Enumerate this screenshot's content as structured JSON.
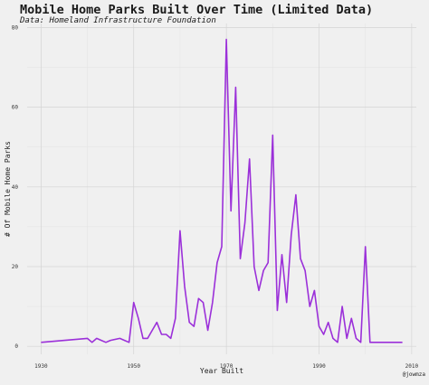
{
  "chart_data": {
    "type": "line",
    "title": "Mobile Home Parks Built Over Time (Limited Data)",
    "subtitle": "Data: Homeland Infrastructure Foundation",
    "xlabel": "Year Built",
    "ylabel": "# Of Mobile Home Parks",
    "caption": "@jowmza",
    "xlim": [
      1927,
      2011
    ],
    "ylim": [
      -2,
      81
    ],
    "xticks": [
      1930,
      1950,
      1970,
      1990,
      2010
    ],
    "yticks": [
      0,
      20,
      40,
      60,
      80
    ],
    "grid": true,
    "line_color": "#9b30d9",
    "series": [
      {
        "x": [
          1930,
          1940,
          1941,
          1942,
          1943,
          1944,
          1945,
          1947,
          1948,
          1949,
          1950,
          1951,
          1952,
          1953,
          1954,
          1955,
          1956,
          1957,
          1958,
          1959,
          1960,
          1961,
          1962,
          1963,
          1964,
          1965,
          1966,
          1967,
          1968,
          1969,
          1970,
          1971,
          1972,
          1973,
          1974,
          1975,
          1976,
          1977,
          1978,
          1979,
          1980,
          1981,
          1982,
          1983,
          1984,
          1985,
          1986,
          1987,
          1988,
          1989,
          1990,
          1991,
          1992,
          1993,
          1994,
          1995,
          1996,
          1997,
          1998,
          1999,
          2000,
          2001,
          2008
        ],
        "y": [
          1,
          2,
          1,
          2,
          1.5,
          1,
          1.5,
          2,
          1.5,
          1,
          11,
          7,
          2,
          2,
          4,
          6,
          3,
          3,
          2,
          7,
          29,
          15,
          6,
          5,
          12,
          11,
          4,
          11,
          21,
          25,
          77,
          34,
          65,
          22,
          31,
          47,
          20,
          14,
          19,
          21,
          53,
          9,
          23,
          11,
          28,
          38,
          22,
          19,
          10,
          14,
          5,
          3,
          6,
          2,
          1,
          10,
          2,
          7,
          2,
          1,
          25,
          1,
          1
        ]
      }
    ]
  }
}
